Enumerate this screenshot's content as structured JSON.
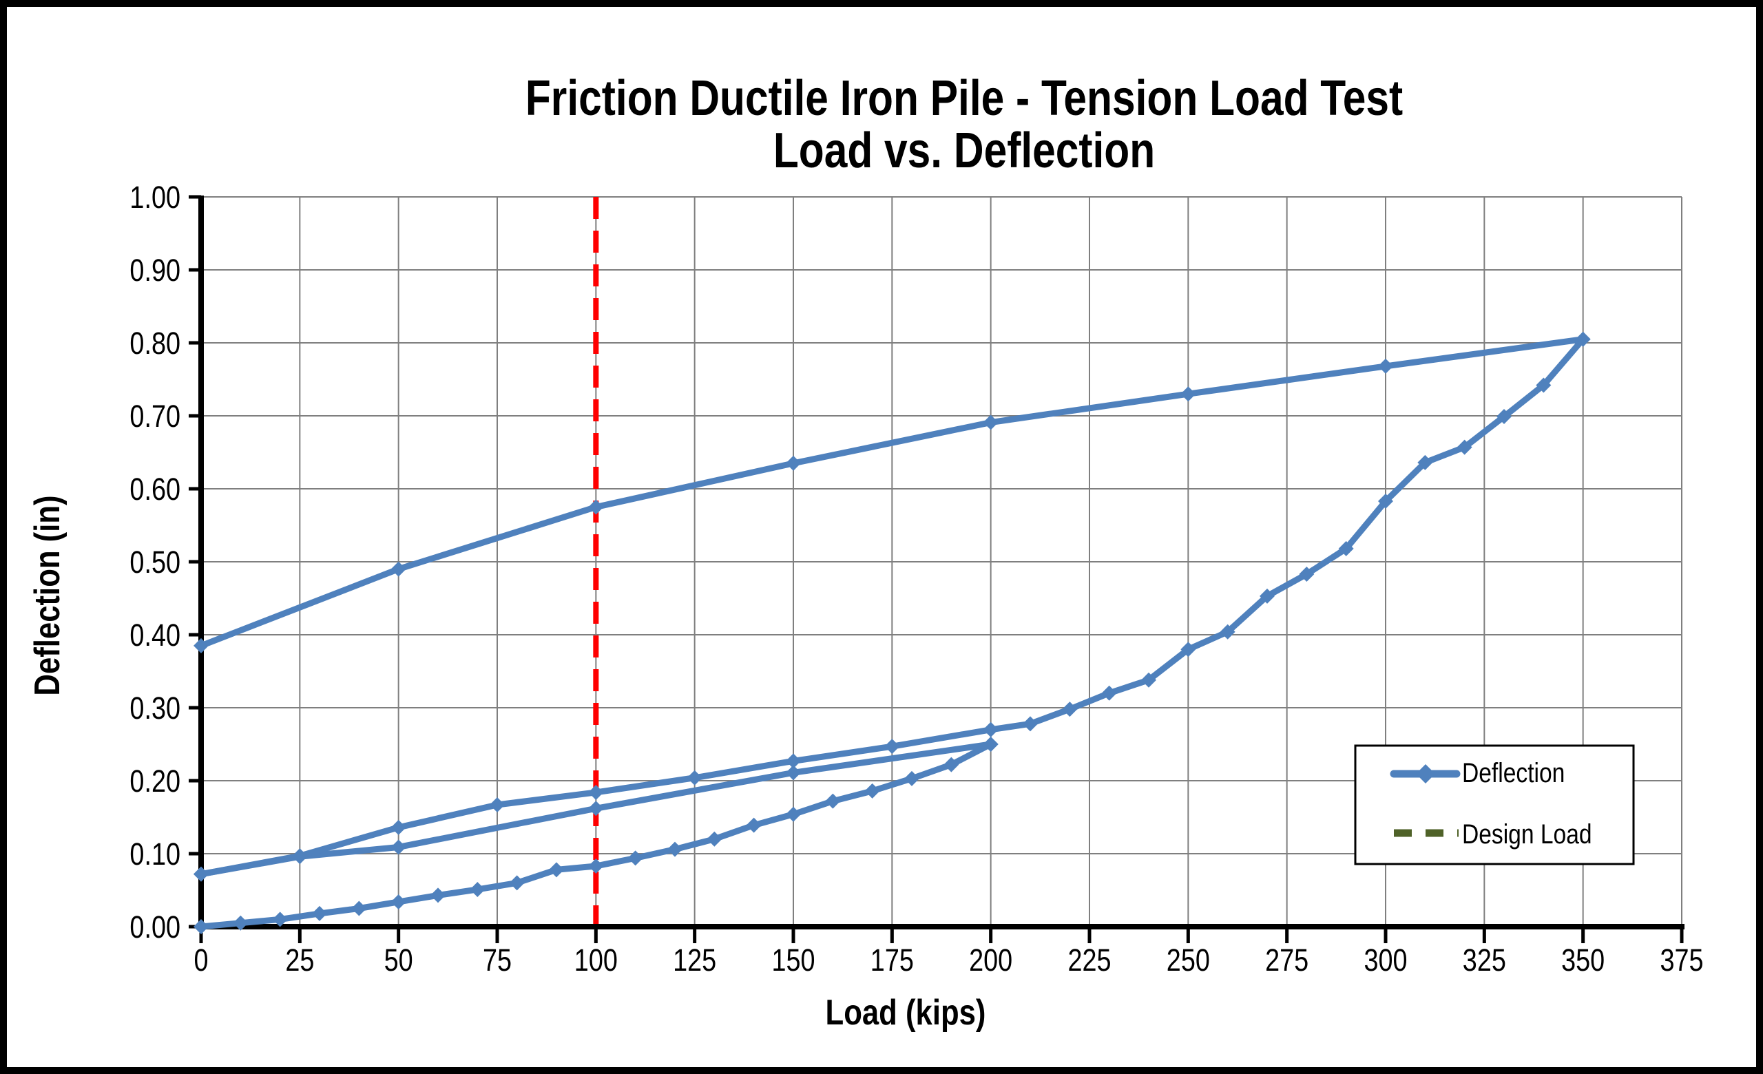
{
  "chart_data": {
    "type": "line",
    "title_line1": "Friction Ductile Iron Pile - Tension Load Test",
    "title_line2": "Load vs. Deflection",
    "xlabel": "Load (kips)",
    "ylabel": "Deflection (in)",
    "x_axis": {
      "min": 0,
      "max": 375,
      "step": 25,
      "decimals": 0
    },
    "y_axis": {
      "min": 0,
      "max": 1,
      "step": 0.1,
      "decimals": 2
    },
    "grid": true,
    "legend_position": "inside-right",
    "colors": {
      "series": "#4F81BD",
      "design_load_line": "#FF0000",
      "design_load_legend": "#4F6228",
      "grid": "#7F7F7F",
      "axis": "#000000"
    },
    "design_load": {
      "x": 100
    },
    "legend": {
      "deflection_label": "Deflection",
      "design_load_label": "Design Load"
    },
    "series": [
      {
        "name": "Deflection",
        "marker": "diamond",
        "segments": [
          {
            "name": "initial-load",
            "points": [
              [
                0,
                0.0
              ],
              [
                10,
                0.005
              ],
              [
                20,
                0.01
              ],
              [
                30,
                0.018
              ],
              [
                40,
                0.025
              ],
              [
                50,
                0.034
              ],
              [
                60,
                0.043
              ],
              [
                70,
                0.051
              ],
              [
                80,
                0.06
              ],
              [
                90,
                0.078
              ],
              [
                100,
                0.083
              ],
              [
                110,
                0.094
              ],
              [
                120,
                0.106
              ],
              [
                130,
                0.12
              ],
              [
                140,
                0.139
              ],
              [
                150,
                0.154
              ],
              [
                160,
                0.172
              ],
              [
                170,
                0.186
              ],
              [
                180,
                0.203
              ],
              [
                190,
                0.222
              ],
              [
                200,
                0.25
              ]
            ]
          },
          {
            "name": "unload-1",
            "points": [
              [
                200,
                0.25
              ],
              [
                150,
                0.211
              ],
              [
                100,
                0.162
              ],
              [
                50,
                0.109
              ],
              [
                25,
                0.096
              ],
              [
                0,
                0.072
              ]
            ]
          },
          {
            "name": "reload",
            "points": [
              [
                0,
                0.072
              ],
              [
                25,
                0.097
              ],
              [
                50,
                0.136
              ],
              [
                75,
                0.167
              ],
              [
                100,
                0.184
              ],
              [
                125,
                0.204
              ],
              [
                150,
                0.227
              ],
              [
                175,
                0.247
              ],
              [
                200,
                0.27
              ]
            ]
          },
          {
            "name": "load-2",
            "points": [
              [
                200,
                0.27
              ],
              [
                210,
                0.278
              ],
              [
                220,
                0.298
              ],
              [
                230,
                0.32
              ],
              [
                240,
                0.338
              ],
              [
                250,
                0.38
              ],
              [
                260,
                0.404
              ],
              [
                270,
                0.453
              ],
              [
                280,
                0.483
              ],
              [
                290,
                0.518
              ],
              [
                300,
                0.583
              ],
              [
                310,
                0.636
              ],
              [
                320,
                0.657
              ],
              [
                330,
                0.699
              ],
              [
                340,
                0.742
              ],
              [
                350,
                0.805
              ]
            ]
          },
          {
            "name": "final-unload",
            "points": [
              [
                350,
                0.805
              ],
              [
                300,
                0.768
              ],
              [
                250,
                0.73
              ],
              [
                200,
                0.691
              ],
              [
                150,
                0.635
              ],
              [
                100,
                0.575
              ],
              [
                50,
                0.49
              ],
              [
                0,
                0.385
              ]
            ]
          }
        ]
      }
    ]
  }
}
